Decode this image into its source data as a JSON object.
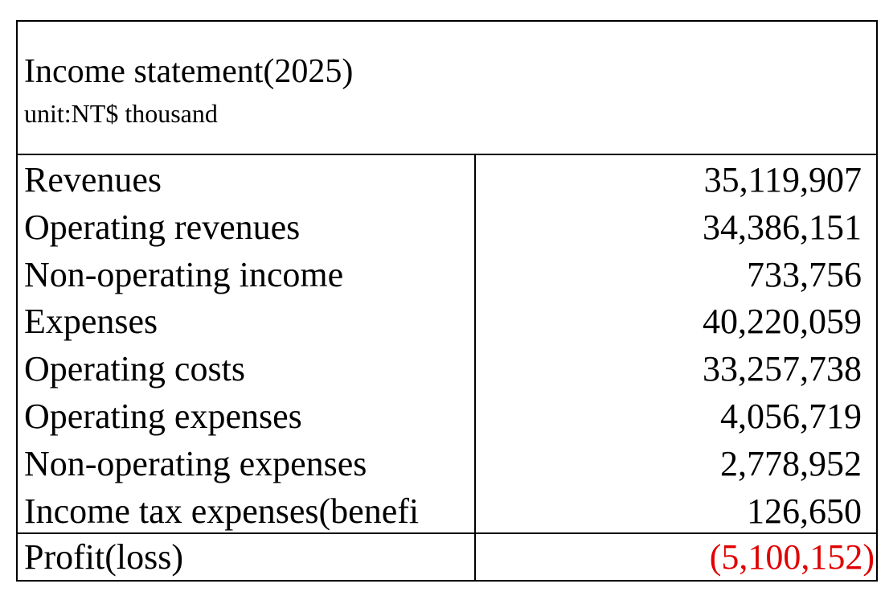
{
  "header": {
    "title": "Income statement(2025)",
    "unit": "unit:NT$ thousand"
  },
  "table": {
    "rows": [
      [
        "Revenues",
        "35,119,907"
      ],
      [
        "Operating revenues",
        "34,386,151"
      ],
      [
        "Non-operating income",
        "733,756"
      ],
      [
        "Expenses",
        "40,220,059"
      ],
      [
        "Operating costs",
        "33,257,738"
      ],
      [
        "Operating expenses",
        "4,056,719"
      ],
      [
        "Non-operating expenses",
        "2,778,952"
      ],
      [
        "Income tax expenses(benefi",
        "126,650"
      ]
    ],
    "total": [
      "Profit(loss)",
      "(5,100,152)"
    ]
  }
}
